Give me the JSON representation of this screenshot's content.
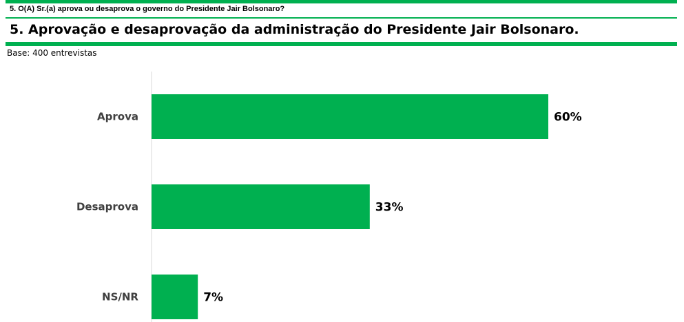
{
  "header": {
    "question": "5. O(A) Sr.(a) aprova ou desaprova o governo do Presidente Jair Bolsonaro?",
    "title": "5. Aprovação e desaprovação da administração do Presidente Jair Bolsonaro.",
    "base": "Base: 400 entrevistas",
    "accent_color": "#00b050"
  },
  "chart_data": {
    "type": "bar",
    "orientation": "horizontal",
    "title": "5. Aprovação e desaprovação da administração do Presidente Jair Bolsonaro.",
    "categories": [
      "Aprova",
      "Desaprova",
      "NS/NR"
    ],
    "values": [
      60,
      33,
      7
    ],
    "value_labels": [
      "60%",
      "33%",
      "7%"
    ],
    "unit": "%",
    "xlim": [
      0,
      80
    ],
    "xlabel": "",
    "ylabel": "",
    "grid": false,
    "legend": "none",
    "bar_color": "#00b050"
  }
}
